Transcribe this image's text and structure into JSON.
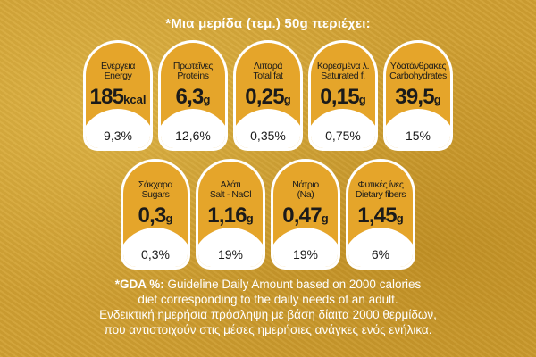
{
  "header": {
    "title": "*Μια μερίδα (τεμ.) 50g περιέχει:"
  },
  "row1": [
    {
      "label_el": "Ενέργεια",
      "label_en": "Energy",
      "value": "185",
      "unit": "kcal",
      "pct": "9,3%"
    },
    {
      "label_el": "Πρωτεΐνες",
      "label_en": "Proteins",
      "value": "6,3",
      "unit": "g",
      "pct": "12,6%"
    },
    {
      "label_el": "Λιπαρά",
      "label_en": "Total fat",
      "value": "0,25",
      "unit": "g",
      "pct": "0,35%"
    },
    {
      "label_el": "Κορεσμένα λ.",
      "label_en": "Saturated f.",
      "value": "0,15",
      "unit": "g",
      "pct": "0,75%"
    },
    {
      "label_el": "Υδατάνθρακες",
      "label_en": "Carbohydrates",
      "value": "39,5",
      "unit": "g",
      "pct": "15%"
    }
  ],
  "row2": [
    {
      "label_el": "Σάκχαρα",
      "label_en": "Sugars",
      "value": "0,3",
      "unit": "g",
      "pct": "0,3%"
    },
    {
      "label_el": "Αλάτι",
      "label_en": "Salt - NaCl",
      "value": "1,16",
      "unit": "g",
      "pct": "19%"
    },
    {
      "label_el": "Νάτριο",
      "label_en": "(Na)",
      "value": "0,47",
      "unit": "g",
      "pct": "19%"
    },
    {
      "label_el": "Φυτικές ίνες",
      "label_en": "Dietary fibers",
      "value": "1,45",
      "unit": "g",
      "pct": "6%"
    }
  ],
  "footer": {
    "gda_label": "*GDA %:",
    "line1_rest": " Guideline Daily Amount based on 2000 calories",
    "line2": "diet corresponding to the daily needs of an adult.",
    "line3": "Ενδεικτική ημερήσια πρόσληψη με βάση δίαιτα 2000 θερμίδων,",
    "line4": "που αντιστοιχούν στις μέσες ημερήσιες ανάγκες ενός ενήλικα."
  },
  "colors": {
    "background": "#d1a032",
    "card_fill": "#e5a52a",
    "card_outline": "#ffffff",
    "text": "#1a1a1a"
  }
}
